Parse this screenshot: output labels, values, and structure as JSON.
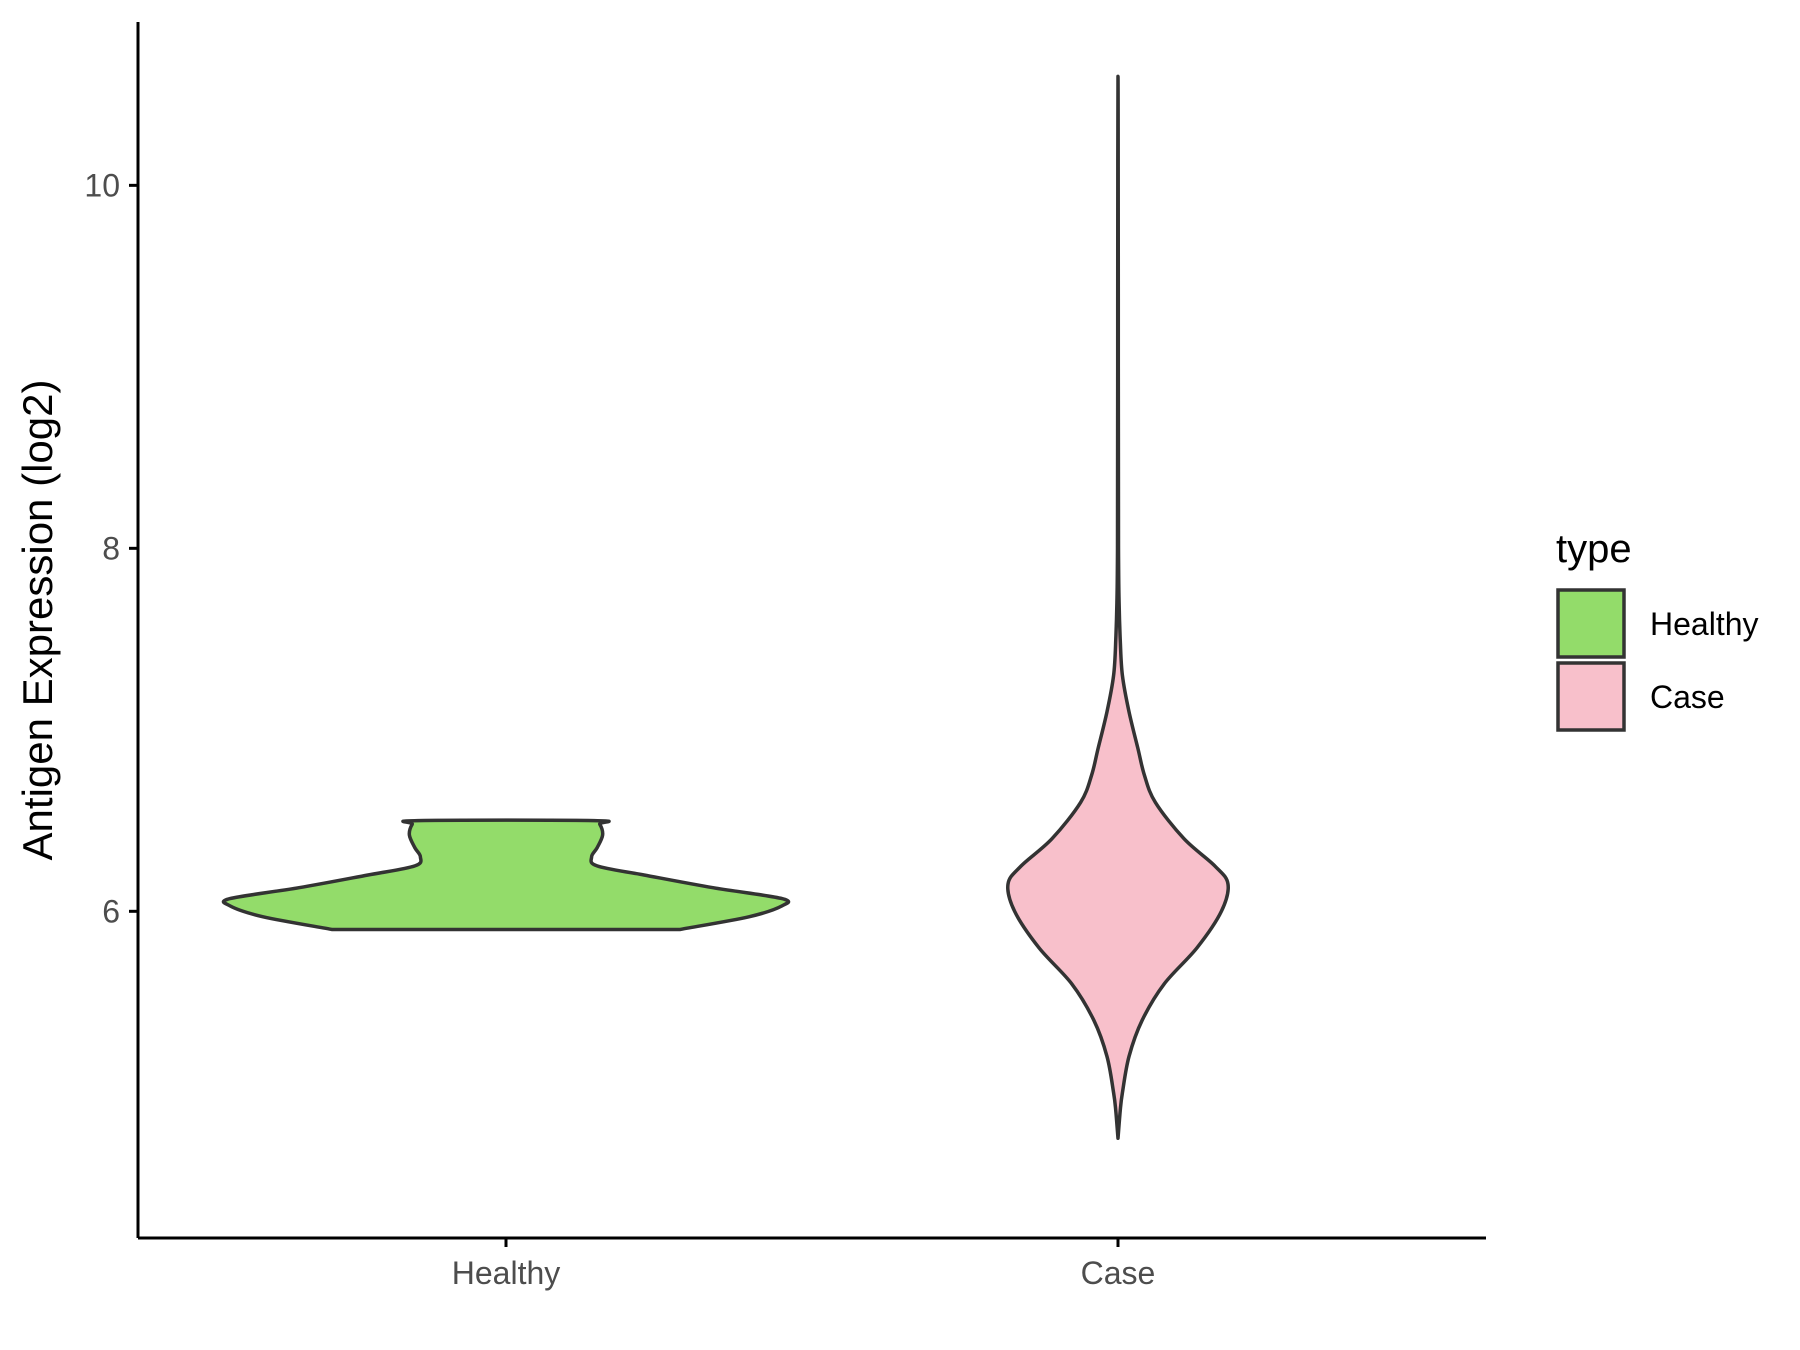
{
  "chart_data": {
    "type": "violin",
    "title": "",
    "xlabel": "",
    "ylabel": "Antigen Expression (log2)",
    "categories": [
      "Healthy",
      "Case"
    ],
    "ylim": [
      4.2,
      10.9
    ],
    "yticks": [
      6,
      8,
      10
    ],
    "legend": {
      "title": "type",
      "placement": "right",
      "entries": [
        {
          "label": "Healthy",
          "color": "#93dc6a"
        },
        {
          "label": "Case",
          "color": "#f8c0cb"
        }
      ]
    },
    "series": [
      {
        "category": "Healthy",
        "color": "#93dc6a",
        "density": [
          [
            5.9,
            0.63
          ],
          [
            5.97,
            0.88
          ],
          [
            6.03,
            1.0
          ],
          [
            6.07,
            1.0
          ],
          [
            6.13,
            0.75
          ],
          [
            6.2,
            0.5
          ],
          [
            6.25,
            0.33
          ],
          [
            6.3,
            0.31
          ],
          [
            6.35,
            0.33
          ],
          [
            6.42,
            0.35
          ],
          [
            6.48,
            0.34
          ],
          [
            6.5,
            0.32
          ]
        ]
      },
      {
        "category": "Case",
        "color": "#f8c0cb",
        "density": [
          [
            4.75,
            0.0
          ],
          [
            4.9,
            0.02
          ],
          [
            5.0,
            0.04
          ],
          [
            5.2,
            0.1
          ],
          [
            5.4,
            0.22
          ],
          [
            5.6,
            0.42
          ],
          [
            5.8,
            0.72
          ],
          [
            6.0,
            0.94
          ],
          [
            6.15,
            1.0
          ],
          [
            6.25,
            0.88
          ],
          [
            6.4,
            0.6
          ],
          [
            6.6,
            0.34
          ],
          [
            6.75,
            0.24
          ],
          [
            6.9,
            0.18
          ],
          [
            7.1,
            0.1
          ],
          [
            7.3,
            0.04
          ],
          [
            7.5,
            0.02
          ],
          [
            7.7,
            0.01
          ],
          [
            8.0,
            0.005
          ],
          [
            9.0,
            0.003
          ],
          [
            10.0,
            0.002
          ],
          [
            10.6,
            0.0
          ]
        ]
      }
    ]
  }
}
